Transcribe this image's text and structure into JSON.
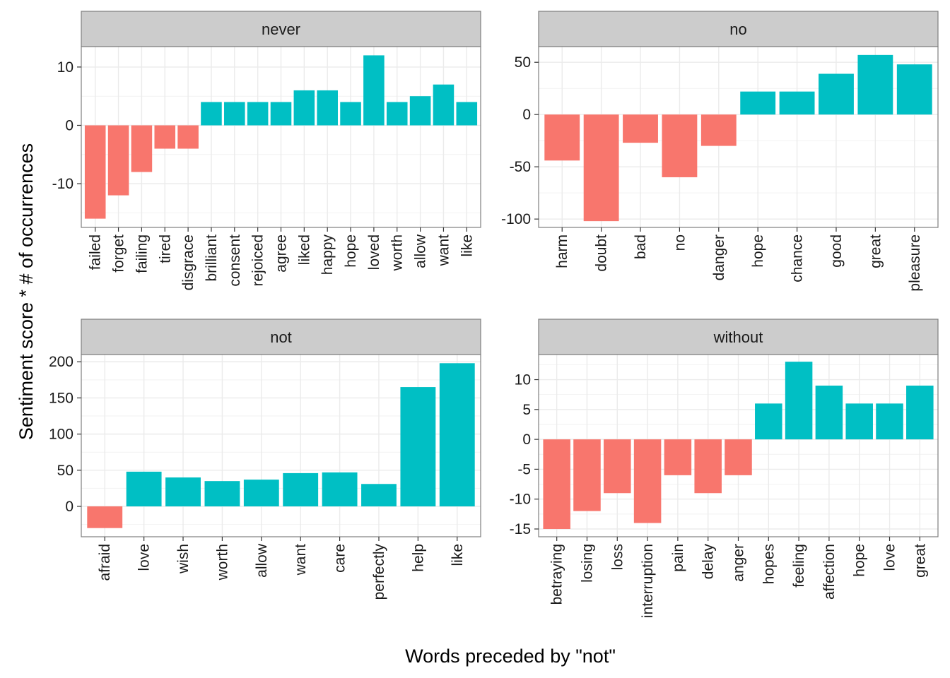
{
  "chart_data": {
    "type": "bar",
    "title": "",
    "xlabel": "Words preceded by \"not\"",
    "ylabel": "Sentiment score * # of occurrences",
    "grid": true,
    "legend": "none",
    "colors": {
      "negative": "#f8766d",
      "positive": "#00bfc4"
    },
    "facets": [
      {
        "name": "never",
        "categories": [
          "failed",
          "forget",
          "failing",
          "tired",
          "disgrace",
          "brilliant",
          "consent",
          "rejoiced",
          "agree",
          "liked",
          "happy",
          "hope",
          "loved",
          "worth",
          "allow",
          "want",
          "like"
        ],
        "values": [
          -16,
          -12,
          -8,
          -4,
          -4,
          4,
          4,
          4,
          4,
          6,
          6,
          4,
          12,
          4,
          5,
          7,
          4
        ],
        "ylim": [
          -17.5,
          13.5
        ],
        "yticks": [
          -10,
          0,
          10
        ]
      },
      {
        "name": "no",
        "categories": [
          "harm",
          "doubt",
          "bad",
          "no",
          "danger",
          "hope",
          "chance",
          "good",
          "great",
          "pleasure"
        ],
        "values": [
          -44,
          -102,
          -27,
          -60,
          -30,
          22,
          22,
          39,
          57,
          48
        ],
        "ylim": [
          -108,
          65
        ],
        "yticks": [
          -100,
          -50,
          0,
          50
        ]
      },
      {
        "name": "not",
        "categories": [
          "afraid",
          "love",
          "wish",
          "worth",
          "allow",
          "want",
          "care",
          "perfectly",
          "help",
          "like"
        ],
        "values": [
          -30,
          48,
          40,
          35,
          37,
          46,
          47,
          31,
          165,
          198
        ],
        "ylim": [
          -42,
          210
        ],
        "yticks": [
          0,
          50,
          100,
          150,
          200
        ]
      },
      {
        "name": "without",
        "categories": [
          "betraying",
          "losing",
          "loss",
          "interruption",
          "pain",
          "delay",
          "anger",
          "hopes",
          "feeling",
          "affection",
          "hope",
          "love",
          "great"
        ],
        "values": [
          -15,
          -12,
          -9,
          -14,
          -6,
          -9,
          -6,
          6,
          13,
          9,
          6,
          6,
          9
        ],
        "ylim": [
          -16.3,
          14.2
        ],
        "yticks": [
          -15,
          -10,
          -5,
          0,
          5,
          10
        ]
      }
    ]
  }
}
